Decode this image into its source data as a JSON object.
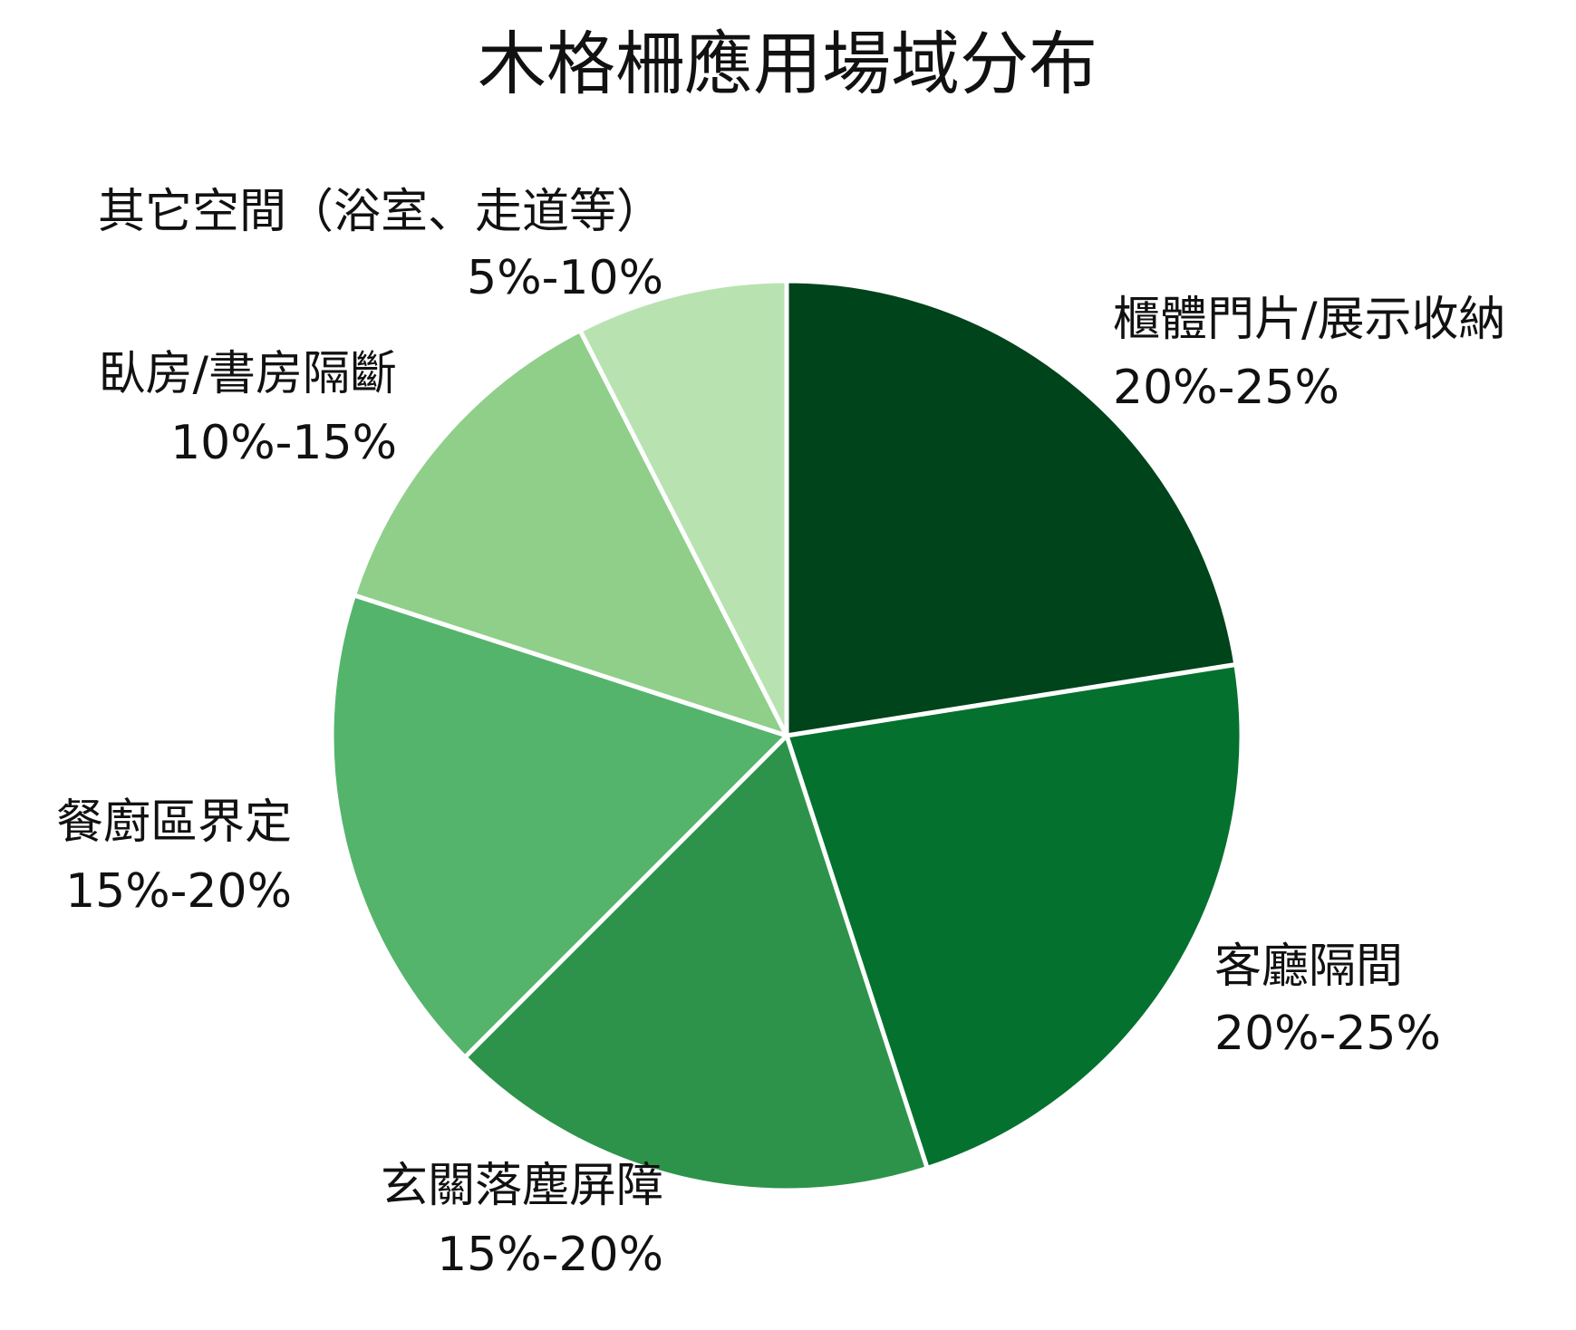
{
  "chart_data": {
    "type": "pie",
    "title": "木格柵應用場域分布",
    "start_angle_deg": 0,
    "direction": "clockwise",
    "legend": "none",
    "slices": [
      {
        "name": "櫃體門片/展示收納",
        "range": "20%-25%",
        "value": 22.5,
        "color": "#00441b"
      },
      {
        "name": "客廳隔間",
        "range": "20%-25%",
        "value": 22.5,
        "color": "#05712f"
      },
      {
        "name": "玄關落塵屏障",
        "range": "15%-20%",
        "value": 17.5,
        "color": "#2d934a"
      },
      {
        "name": "餐廚區界定",
        "range": "15%-20%",
        "value": 17.5,
        "color": "#55b46c"
      },
      {
        "name": "臥房/書房隔斷",
        "range": "10%-15%",
        "value": 12.5,
        "color": "#8fcf8a"
      },
      {
        "name": "其它空間（浴室、走道等）",
        "range": "5%-10%",
        "value": 7.5,
        "color": "#b8e3b1"
      }
    ]
  }
}
